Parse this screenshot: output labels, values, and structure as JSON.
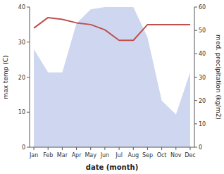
{
  "chart_data": {
    "type": "line",
    "xlabel": "date (month)",
    "ylabel": "max temp (C)",
    "y2label": "med. precipitation (kg/m2)",
    "categories": [
      "Jan",
      "Feb",
      "Mar",
      "Apr",
      "May",
      "Jun",
      "Jul",
      "Aug",
      "Sep",
      "Oct",
      "Nov",
      "Dec"
    ],
    "series": [
      {
        "type": "area",
        "axis": "y2",
        "color": "#c5d0ec",
        "values": [
          42,
          32,
          32,
          53,
          59,
          60,
          60,
          60,
          47,
          20,
          14,
          32
        ]
      },
      {
        "type": "line",
        "color": "#c0504d",
        "values": [
          34,
          37,
          36.5,
          35.5,
          35,
          33.5,
          30.5,
          30.5,
          35,
          35,
          35,
          35
        ]
      }
    ],
    "ylim": [
      0,
      40
    ],
    "yticks": [
      0,
      10,
      20,
      30,
      40
    ],
    "y2lim": [
      0,
      60
    ],
    "y2ticks": [
      0,
      10,
      20,
      30,
      40,
      50,
      60
    ],
    "grid": false
  }
}
